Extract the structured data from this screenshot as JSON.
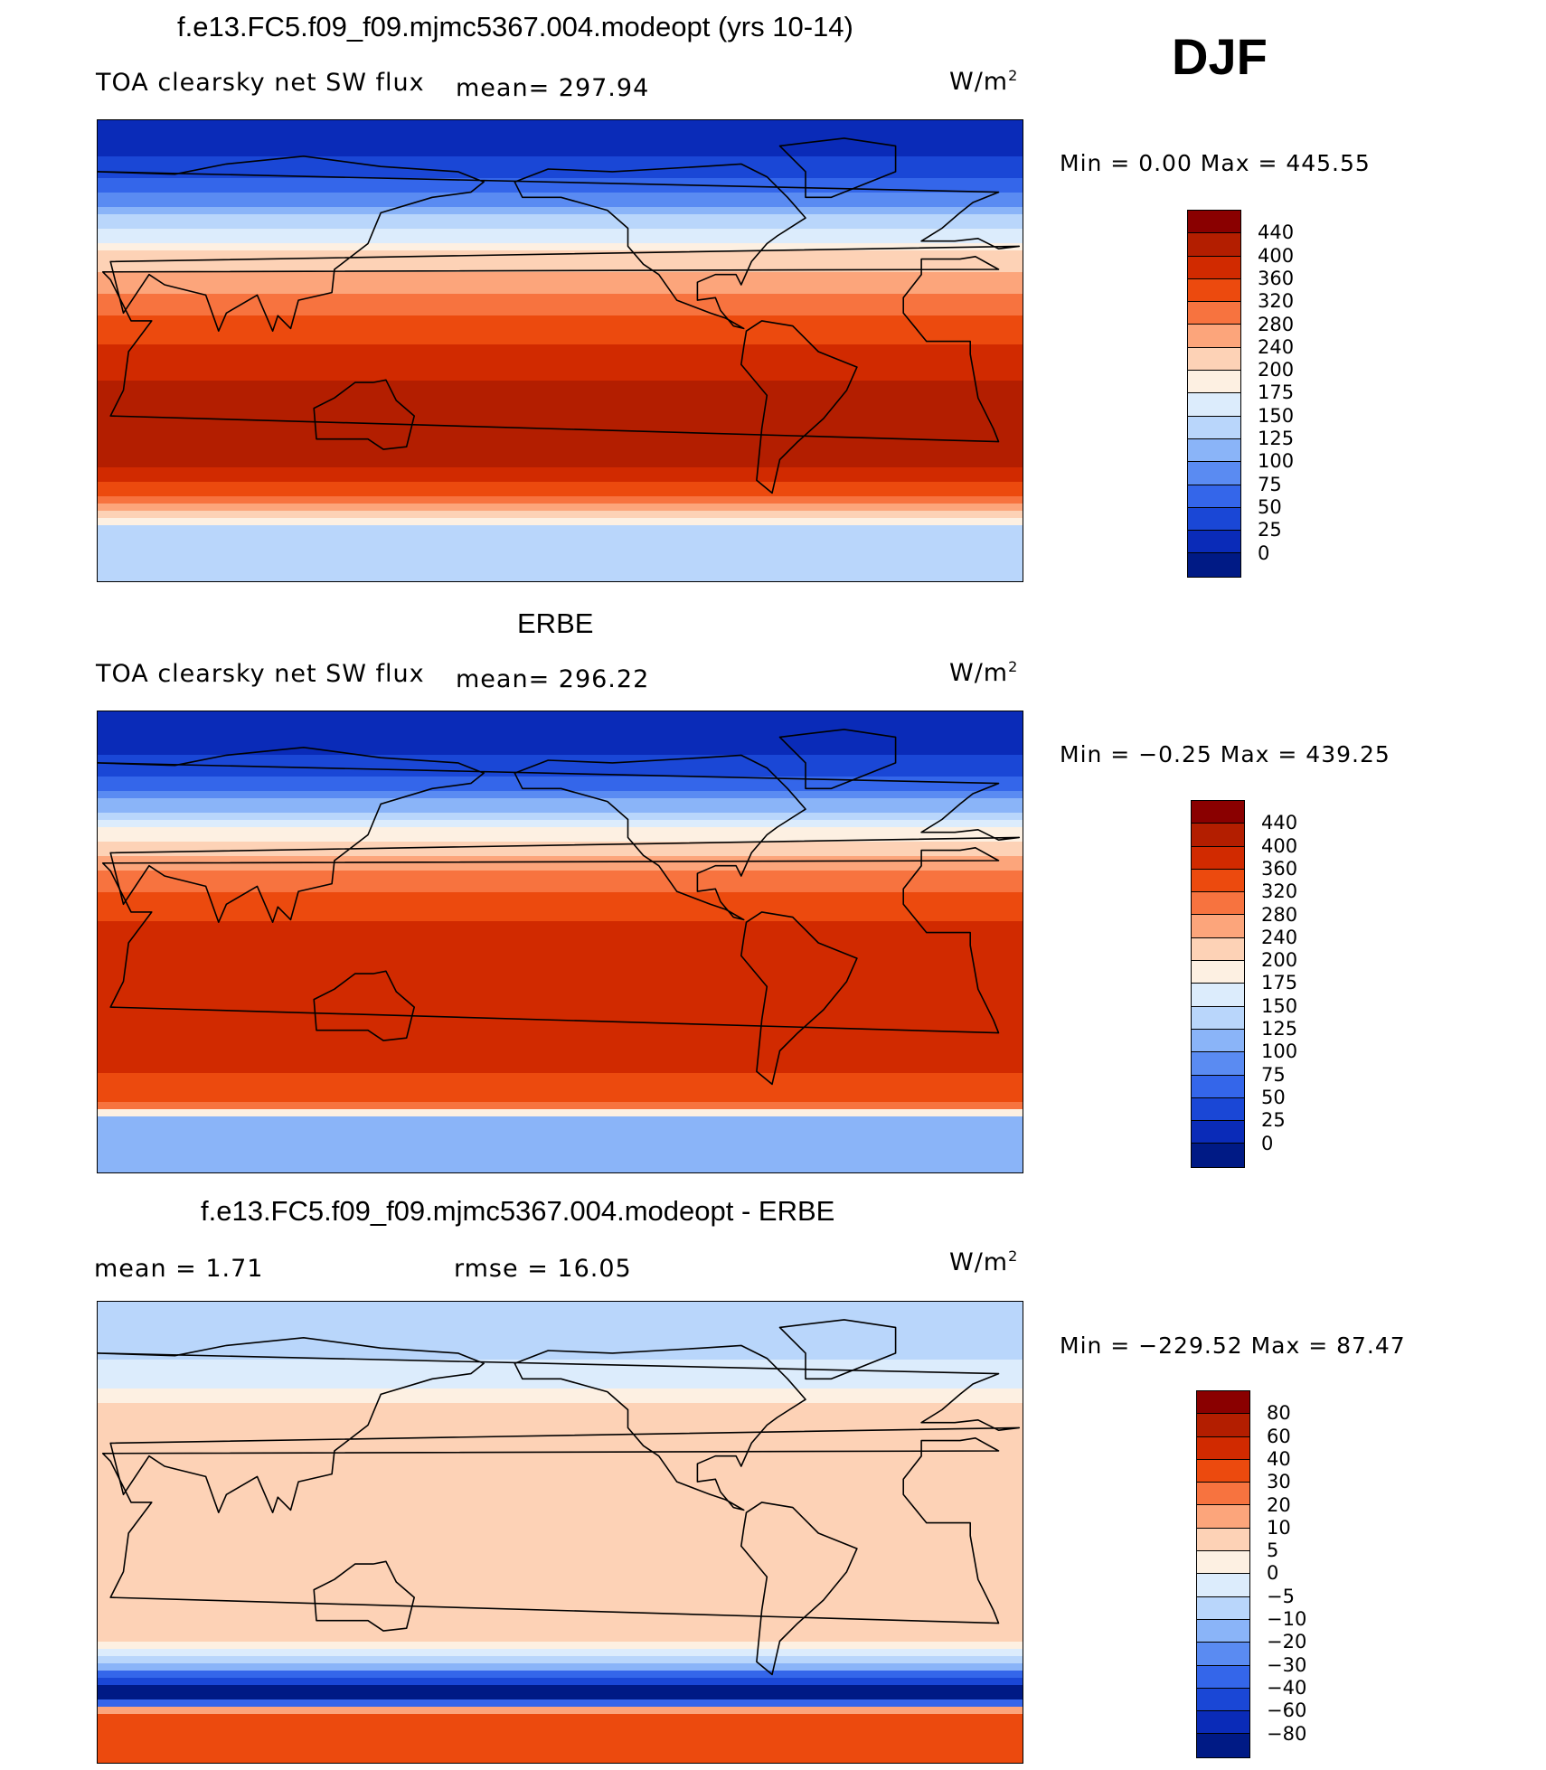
{
  "season": "DJF",
  "panels": [
    {
      "id": "model",
      "title": "f.e13.FC5.f09_f09.mjmc5367.004.modeopt (yrs 10-14)",
      "variable": "TOA clearsky net SW flux",
      "stat_text": "mean=  297.94",
      "units": "W/m",
      "units_exp": "2",
      "minmax": "Min =    0.00  Max =  445.55",
      "colorbar": {
        "labels": [
          "440",
          "400",
          "360",
          "320",
          "280",
          "240",
          "200",
          "175",
          "150",
          "125",
          "100",
          "75",
          "50",
          "25",
          "0"
        ],
        "colors": [
          "#8a0000",
          "#b31e00",
          "#d12a00",
          "#ec4a0e",
          "#f7733f",
          "#fca57b",
          "#fdd2b6",
          "#fdf0e2",
          "#dcecfc",
          "#b9d6fb",
          "#8ab4f8",
          "#5a8bf2",
          "#3466ea",
          "#1a47d6",
          "#0a2bb8",
          "#001a85"
        ]
      },
      "stops": [
        [
          90,
          0
        ],
        [
          72,
          30
        ],
        [
          60,
          80
        ],
        [
          48,
          150
        ],
        [
          38,
          200
        ],
        [
          28,
          260
        ],
        [
          15,
          320
        ],
        [
          0,
          370
        ],
        [
          -20,
          430
        ],
        [
          -34,
          440
        ],
        [
          -45,
          400
        ],
        [
          -55,
          330
        ],
        [
          -62,
          250
        ],
        [
          -68,
          150
        ],
        [
          -90,
          130
        ]
      ]
    },
    {
      "id": "obs",
      "title": "ERBE",
      "variable": "TOA clearsky net SW flux",
      "stat_text": "mean=  296.22",
      "units": "W/m",
      "units_exp": "2",
      "minmax": "Min =  −0.25  Max =  439.25",
      "colorbar": {
        "labels": [
          "440",
          "400",
          "360",
          "320",
          "280",
          "240",
          "200",
          "175",
          "150",
          "125",
          "100",
          "75",
          "50",
          "25",
          "0"
        ],
        "colors": [
          "#8a0000",
          "#b31e00",
          "#d12a00",
          "#ec4a0e",
          "#f7733f",
          "#fca57b",
          "#fdd2b6",
          "#fdf0e2",
          "#dcecfc",
          "#b9d6fb",
          "#8ab4f8",
          "#5a8bf2",
          "#3466ea",
          "#1a47d6",
          "#0a2bb8",
          "#001a85"
        ]
      },
      "stops": [
        [
          90,
          0
        ],
        [
          72,
          25
        ],
        [
          60,
          70
        ],
        [
          48,
          150
        ],
        [
          38,
          210
        ],
        [
          28,
          280
        ],
        [
          15,
          340
        ],
        [
          0,
          380
        ],
        [
          -20,
          395
        ],
        [
          -34,
          380
        ],
        [
          -45,
          370
        ],
        [
          -55,
          350
        ],
        [
          -62,
          330
        ],
        [
          -68,
          120
        ],
        [
          -90,
          120
        ]
      ]
    },
    {
      "id": "diff",
      "title": "f.e13.FC5.f09_f09.mjmc5367.004.modeopt - ERBE",
      "stat_left": "mean =     1.71",
      "stat_right": "rmse =    16.05",
      "units": "W/m",
      "units_exp": "2",
      "minmax": "Min = −229.52  Max =    87.47",
      "colorbar": {
        "labels": [
          "80",
          "60",
          "40",
          "30",
          "20",
          "10",
          "5",
          "0",
          "−5",
          "−10",
          "−20",
          "−30",
          "−40",
          "−60",
          "−80"
        ],
        "colors": [
          "#8a0000",
          "#b31e00",
          "#d12a00",
          "#ec4a0e",
          "#f7733f",
          "#fca57b",
          "#fdd2b6",
          "#fdf0e2",
          "#dcecfc",
          "#b9d6fb",
          "#8ab4f8",
          "#5a8bf2",
          "#3466ea",
          "#1a47d6",
          "#0a2bb8",
          "#001a85"
        ]
      },
      "stops": [
        [
          90,
          -8
        ],
        [
          60,
          -4
        ],
        [
          45,
          10
        ],
        [
          30,
          8
        ],
        [
          15,
          6
        ],
        [
          0,
          8
        ],
        [
          -20,
          10
        ],
        [
          -40,
          8
        ],
        [
          -52,
          -15
        ],
        [
          -58,
          -60
        ],
        [
          -62,
          -110
        ],
        [
          -66,
          -40
        ],
        [
          -70,
          30
        ],
        [
          -90,
          30
        ]
      ]
    }
  ]
}
